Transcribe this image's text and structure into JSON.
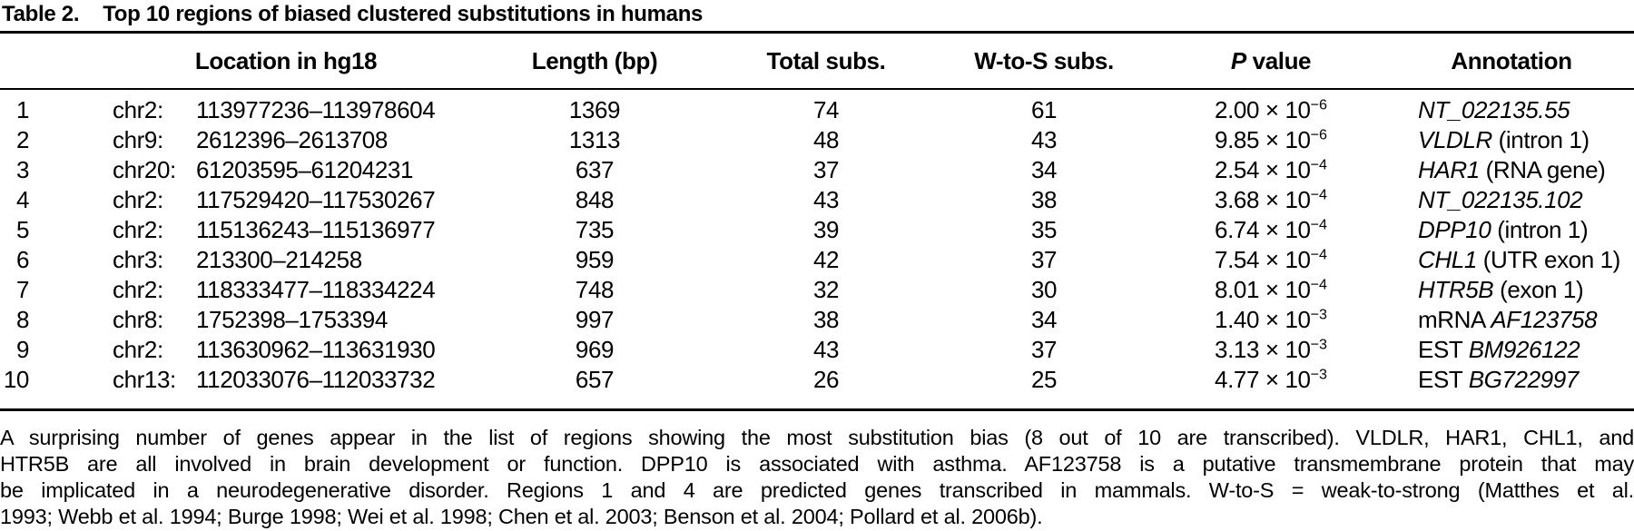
{
  "title": {
    "label": "Table 2.",
    "text": "Top 10 regions of biased clustered substitutions in humans"
  },
  "table": {
    "headers": {
      "location": "Location in hg18",
      "length": "Length (bp)",
      "total": "Total subs.",
      "wts": "W-to-S subs.",
      "p_italic": "P",
      "p_rest": " value",
      "annotation": "Annotation"
    },
    "rows": [
      {
        "rank": "1",
        "chr": "chr2:",
        "range": "113977236–113978604",
        "length": "1369",
        "total": "74",
        "wts": "61",
        "p_base": "2.00 × 10",
        "p_exp": "−6",
        "ann_prefix": "",
        "ann_gene": "NT_022135.55",
        "ann_suffix": ""
      },
      {
        "rank": "2",
        "chr": "chr9:",
        "range": "2612396–2613708",
        "length": "1313",
        "total": "48",
        "wts": "43",
        "p_base": "9.85 × 10",
        "p_exp": "−6",
        "ann_prefix": "",
        "ann_gene": "VLDLR",
        "ann_suffix": " (intron 1)"
      },
      {
        "rank": "3",
        "chr": "chr20:",
        "range": "61203595–61204231",
        "length": "637",
        "total": "37",
        "wts": "34",
        "p_base": "2.54 × 10",
        "p_exp": "−4",
        "ann_prefix": "",
        "ann_gene": "HAR1",
        "ann_suffix": " (RNA gene)"
      },
      {
        "rank": "4",
        "chr": "chr2:",
        "range": "117529420–117530267",
        "length": "848",
        "total": "43",
        "wts": "38",
        "p_base": "3.68 × 10",
        "p_exp": "−4",
        "ann_prefix": "",
        "ann_gene": "NT_022135.102",
        "ann_suffix": ""
      },
      {
        "rank": "5",
        "chr": "chr2:",
        "range": "115136243–115136977",
        "length": "735",
        "total": "39",
        "wts": "35",
        "p_base": "6.74 × 10",
        "p_exp": "−4",
        "ann_prefix": "",
        "ann_gene": "DPP10",
        "ann_suffix": " (intron 1)"
      },
      {
        "rank": "6",
        "chr": "chr3:",
        "range": "213300–214258",
        "length": "959",
        "total": "42",
        "wts": "37",
        "p_base": "7.54 × 10",
        "p_exp": "−4",
        "ann_prefix": "",
        "ann_gene": "CHL1",
        "ann_suffix": " (UTR exon 1)"
      },
      {
        "rank": "7",
        "chr": "chr2:",
        "range": "118333477–118334224",
        "length": "748",
        "total": "32",
        "wts": "30",
        "p_base": "8.01 × 10",
        "p_exp": "−4",
        "ann_prefix": "",
        "ann_gene": "HTR5B",
        "ann_suffix": " (exon 1)"
      },
      {
        "rank": "8",
        "chr": "chr8:",
        "range": "1752398–1753394",
        "length": "997",
        "total": "38",
        "wts": "34",
        "p_base": "1.40 × 10",
        "p_exp": "−3",
        "ann_prefix": "mRNA ",
        "ann_gene": "AF123758",
        "ann_suffix": ""
      },
      {
        "rank": "9",
        "chr": "chr2:",
        "range": "113630962–113631930",
        "length": "969",
        "total": "43",
        "wts": "37",
        "p_base": "3.13 × 10",
        "p_exp": "−3",
        "ann_prefix": "EST ",
        "ann_gene": "BM926122",
        "ann_suffix": ""
      },
      {
        "rank": "10",
        "chr": "chr13:",
        "range": "112033076–112033732",
        "length": "657",
        "total": "26",
        "wts": "25",
        "p_base": "4.77 × 10",
        "p_exp": "−3",
        "ann_prefix": "EST ",
        "ann_gene": "BG722997",
        "ann_suffix": ""
      }
    ]
  },
  "caption": {
    "lines": [
      "A surprising number of genes appear in the list of regions showing the most substitution bias (8 out of 10 are transcribed). VLDLR, HAR1, CHL1, and",
      "HTR5B are all involved in brain development or function. DPP10 is associated with asthma. AF123758 is a putative transmembrane protein that may",
      "be implicated in a neurodegenerative disorder. Regions 1 and 4 are predicted genes transcribed in mammals. W-to-S = weak-to-strong (Matthes et al.",
      "1993; Webb et al. 1994; Burge 1998; Wei et al. 1998; Chen et al. 2003; Benson et al. 2004; Pollard et al. 2006b)."
    ]
  }
}
